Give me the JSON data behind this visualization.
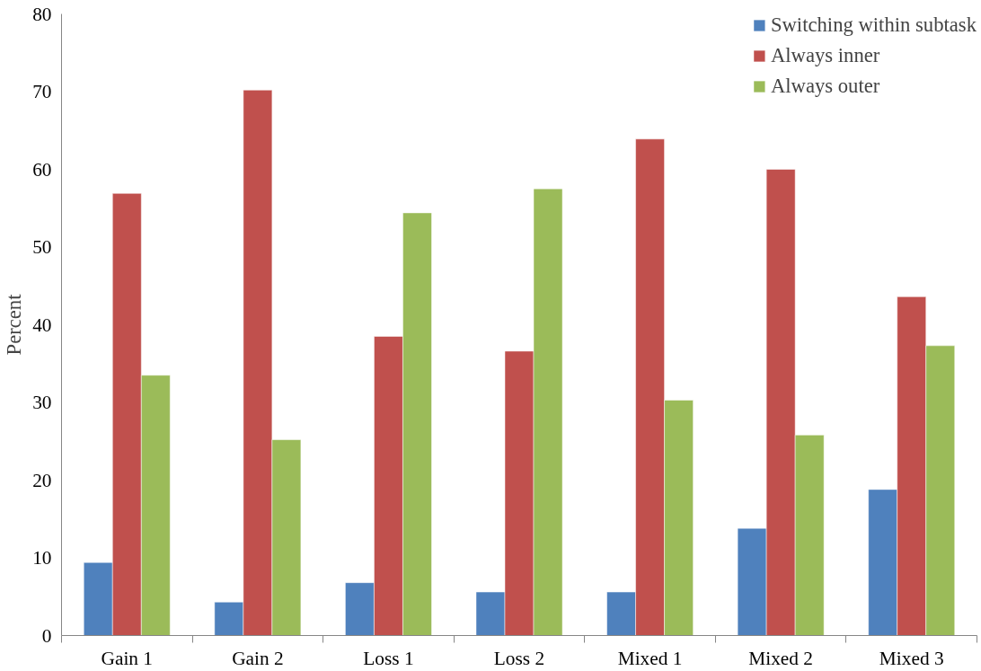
{
  "chart_data": {
    "type": "bar",
    "ylabel": "Percent",
    "categories": [
      "Gain 1",
      "Gain 2",
      "Loss 1",
      "Loss 2",
      "Mixed 1",
      "Mixed 2",
      "Mixed 3"
    ],
    "series": [
      {
        "name": "Switching within subtask",
        "color": "#4f81bd",
        "values": [
          9.4,
          4.3,
          6.8,
          5.6,
          5.6,
          13.8,
          18.8
        ]
      },
      {
        "name": "Always inner",
        "color": "#c0504d",
        "values": [
          56.9,
          70.2,
          38.5,
          36.6,
          63.9,
          60.0,
          43.6
        ]
      },
      {
        "name": "Always outer",
        "color": "#9bbb59",
        "values": [
          33.5,
          25.2,
          54.4,
          57.5,
          30.3,
          25.8,
          37.3
        ]
      }
    ],
    "ylim": [
      0,
      80
    ],
    "yticks": [
      0,
      10,
      20,
      30,
      40,
      50,
      60,
      70,
      80
    ],
    "grid": false,
    "legend": "top right"
  }
}
